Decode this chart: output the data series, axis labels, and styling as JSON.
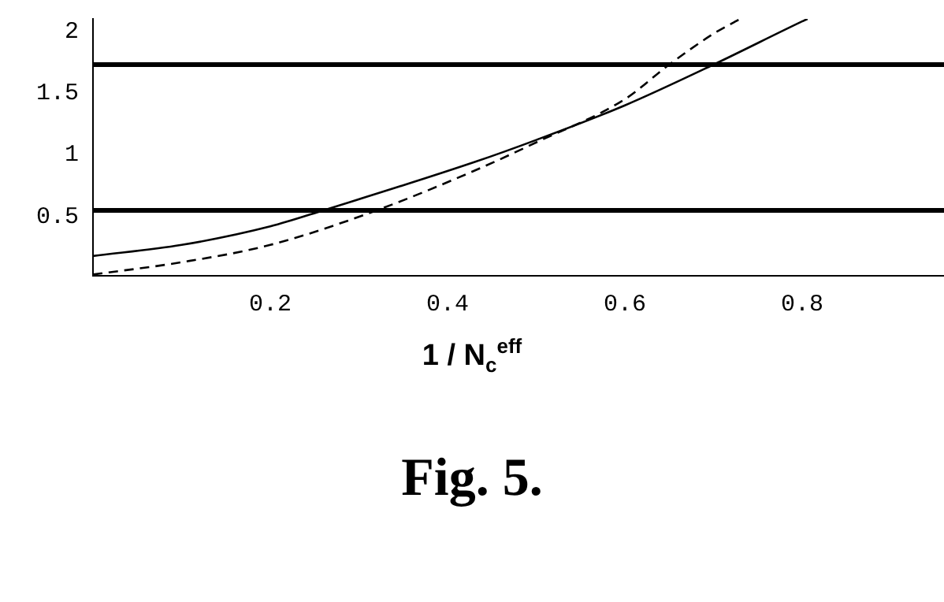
{
  "chart_data": {
    "type": "line",
    "xlabel": "1 / N$_{c}$$^{eff}$",
    "annotations": [
      "Fig. 5."
    ],
    "xlim": [
      0,
      0.96
    ],
    "ylim": [
      0.02,
      2.1
    ],
    "xticks": [
      0.2,
      0.4,
      0.6,
      0.8
    ],
    "yticks": [
      0.5,
      1,
      1.5,
      2
    ],
    "grid": false,
    "legend": false,
    "marker": "none",
    "series": [
      {
        "color": "#000000",
        "line_style": "solid",
        "x": [
          0,
          0.1,
          0.2,
          0.26,
          0.43,
          0.5,
          0.6,
          0.7,
          0.8,
          0.806
        ],
        "values": [
          0.18,
          0.27,
          0.42,
          0.55,
          0.94,
          1.12,
          1.4,
          1.73,
          2.08,
          2.1
        ]
      },
      {
        "color": "#000000",
        "line_style": "dashed",
        "x": [
          0,
          0.1,
          0.2,
          0.32,
          0.43,
          0.5,
          0.6,
          0.65,
          0.7,
          0.73
        ],
        "values": [
          0.03,
          0.13,
          0.27,
          0.55,
          0.87,
          1.1,
          1.45,
          1.73,
          1.98,
          2.1
        ]
      }
    ],
    "ref_lines": [
      {
        "axis": "y",
        "value": 1.73,
        "color": "#000000"
      },
      {
        "axis": "y",
        "value": 0.55,
        "color": "#000000"
      }
    ]
  }
}
